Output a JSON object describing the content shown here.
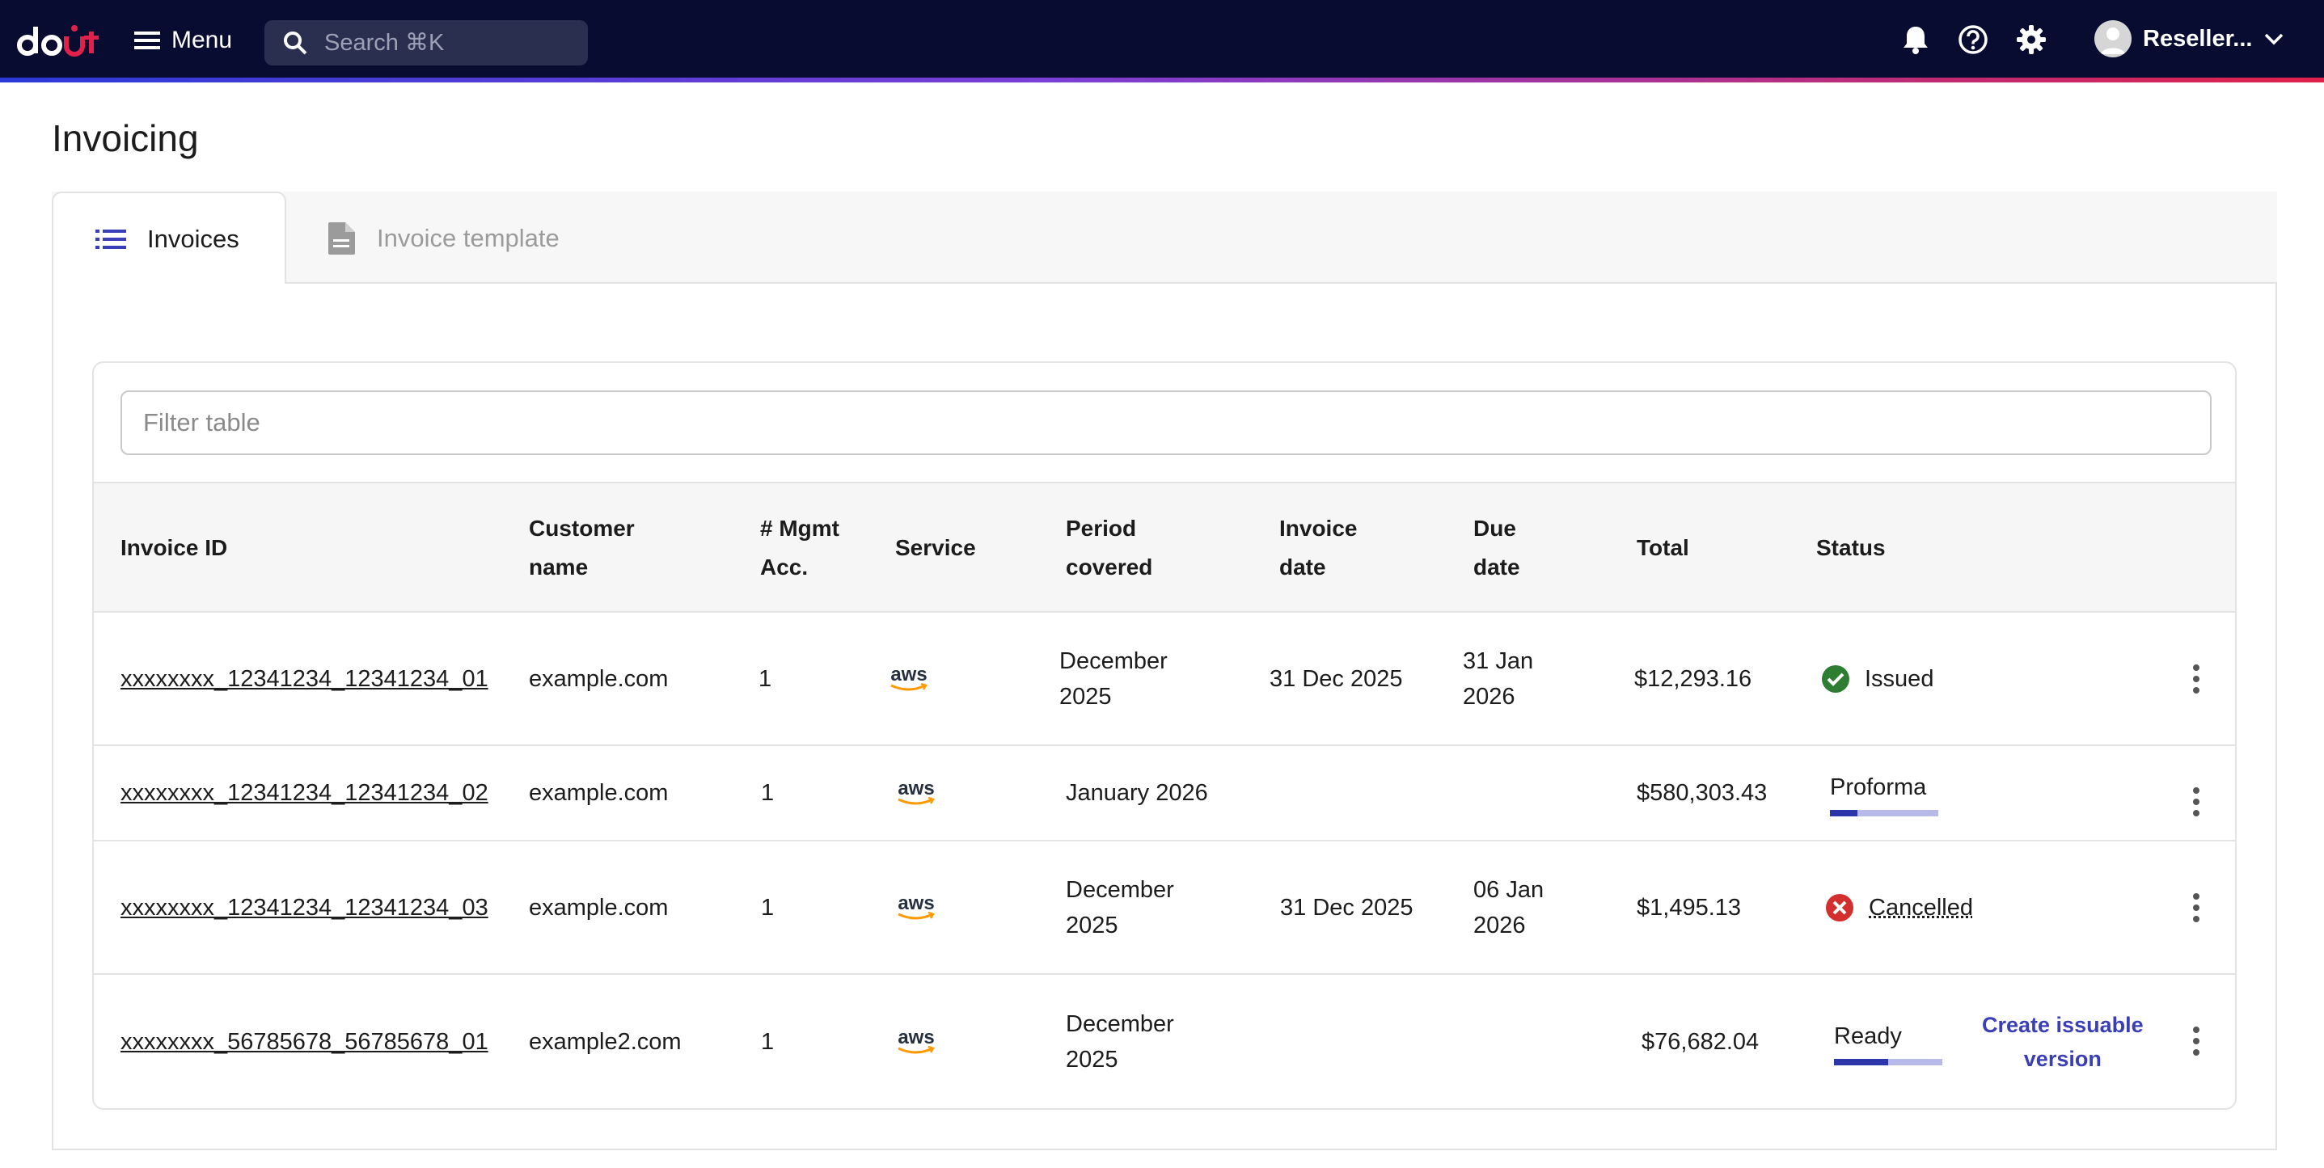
{
  "header": {
    "logo_text": "doit",
    "menu_label": "Menu",
    "search_placeholder": "Search ⌘K",
    "icons": [
      "bell-icon",
      "help-icon",
      "gear-icon"
    ],
    "user_label": "Reseller...",
    "colors": {
      "bar": "#070c30",
      "accent_start": "#2b3ad8",
      "accent_end": "#e0224a"
    }
  },
  "page": {
    "title": "Invoicing"
  },
  "tabs": [
    {
      "label": "Invoices",
      "icon": "list-icon",
      "active": true
    },
    {
      "label": "Invoice template",
      "icon": "document-icon",
      "active": false
    }
  ],
  "filter": {
    "placeholder": "Filter table",
    "value": ""
  },
  "table": {
    "columns": {
      "invoice_id": "Invoice ID",
      "customer_name_1": "Customer",
      "customer_name_2": "name",
      "mgmt_1": "# Mgmt",
      "mgmt_2": "Acc.",
      "service": "Service",
      "period_1": "Period",
      "period_2": "covered",
      "invoice_date_1": "Invoice",
      "invoice_date_2": "date",
      "due_date_1": "Due",
      "due_date_2": "date",
      "total": "Total",
      "status": "Status"
    },
    "rows": [
      {
        "invoice_id": "xxxxxxxx_12341234_12341234_01",
        "customer": "example.com",
        "mgmt": "1",
        "service": "aws",
        "period_1": "December",
        "period_2": "2025",
        "invoice_date": "31 Dec 2025",
        "due_1": "31 Jan",
        "due_2": "2026",
        "total": "$12,293.16",
        "status": "Issued",
        "status_icon": "check-circle-icon",
        "status_color": "#2e7d32"
      },
      {
        "invoice_id": "xxxxxxxx_12341234_12341234_02",
        "customer": "example.com",
        "mgmt": "1",
        "service": "aws",
        "period_1": "January 2026",
        "period_2": "",
        "invoice_date": "",
        "due_1": "",
        "due_2": "",
        "total": "$580,303.43",
        "status": "Proforma",
        "progress": 0.25
      },
      {
        "invoice_id": "xxxxxxxx_12341234_12341234_03",
        "customer": "example.com",
        "mgmt": "1",
        "service": "aws",
        "period_1": "December",
        "period_2": "2025",
        "invoice_date": "31 Dec 2025",
        "due_1": "06 Jan",
        "due_2": "2026",
        "total": "$1,495.13",
        "status": "Cancelled",
        "status_icon": "cancel-circle-icon",
        "status_color": "#d32f2f"
      },
      {
        "invoice_id": "xxxxxxxx_56785678_56785678_01",
        "customer": "example2.com",
        "mgmt": "1",
        "service": "aws",
        "period_1": "December",
        "period_2": "2025",
        "invoice_date": "",
        "due_1": "",
        "due_2": "",
        "total": "$76,682.04",
        "status": "Ready",
        "progress": 0.5,
        "action_1": "Create issuable",
        "action_2": "version"
      }
    ]
  }
}
